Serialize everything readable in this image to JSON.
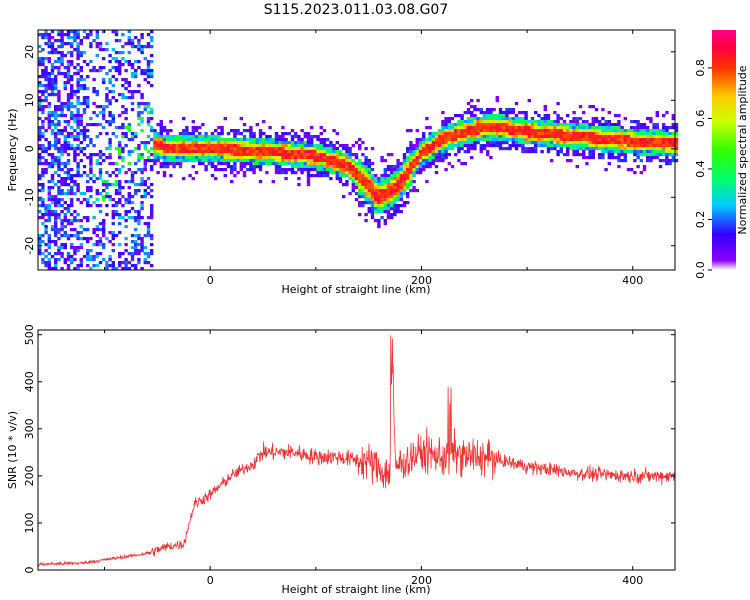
{
  "figure": {
    "title": "S115.2023.011.03.08.G07"
  },
  "chart_data": [
    {
      "type": "heatmap",
      "xlabel": "Height of straight line (km)",
      "ylabel": "Frequency (Hz)",
      "xlim": [
        -163,
        440
      ],
      "ylim": [
        -25,
        24.5
      ],
      "xticks": [
        "0",
        "200",
        "400"
      ],
      "xtick_values": [
        0,
        200,
        400
      ],
      "yticks": [
        "-20",
        "-10",
        "0",
        "10",
        "20"
      ],
      "ytick_values": [
        -20,
        -10,
        0,
        10,
        20
      ],
      "colorbar": {
        "label": "Normalized spectral amplitude",
        "ticks": [
          "0.0",
          "0.2",
          "0.4",
          "0.6",
          "0.8"
        ],
        "tick_values": [
          0,
          0.2,
          0.4,
          0.6,
          0.8
        ],
        "range": [
          0,
          0.95
        ],
        "colormap": "gist_rainbow_reversed"
      },
      "ridge": {
        "description_points_x": [
          -55,
          -40,
          0,
          50,
          100,
          130,
          150,
          158,
          170,
          180,
          190,
          200,
          220,
          250,
          270,
          300,
          350,
          400,
          440
        ],
        "frequency_y": [
          1,
          0,
          0,
          -0.5,
          -1.5,
          -3.5,
          -7.5,
          -10,
          -9,
          -7,
          -4,
          -1,
          2,
          4,
          4.5,
          3.5,
          2.5,
          1.5,
          1
        ]
      },
      "grid": false
    },
    {
      "type": "line",
      "xlabel": "Height of straight line (km)",
      "ylabel": "SNR (10 * v/v)",
      "xlim": [
        -163,
        440
      ],
      "ylim": [
        0,
        510
      ],
      "xticks": [
        "0",
        "200",
        "400"
      ],
      "xtick_values": [
        0,
        200,
        400
      ],
      "yticks": [
        "0",
        "100",
        "200",
        "300",
        "400",
        "500"
      ],
      "ytick_values": [
        0,
        100,
        200,
        300,
        400,
        500
      ],
      "color": "#ee3333",
      "series": [
        {
          "x": [
            -163,
            -120,
            -90,
            -60,
            -40,
            -25,
            -15,
            0,
            20,
            40,
            50,
            80,
            100,
            120,
            150,
            170,
            172,
            175,
            200,
            220,
            230,
            240,
            260,
            280,
            300,
            350,
            400,
            440
          ],
          "y": [
            12,
            15,
            25,
            35,
            50,
            55,
            140,
            160,
            200,
            225,
            250,
            250,
            240,
            240,
            230,
            200,
            505,
            220,
            250,
            240,
            250,
            240,
            240,
            230,
            220,
            205,
            200,
            200
          ]
        }
      ],
      "grid": false
    }
  ]
}
